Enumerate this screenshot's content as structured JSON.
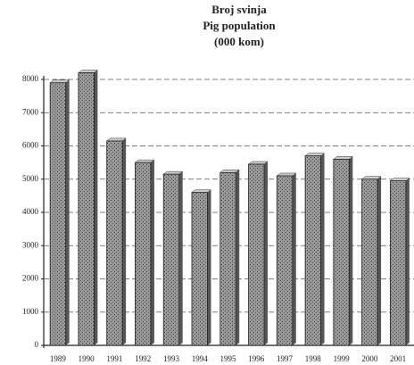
{
  "chart_data": {
    "type": "bar",
    "title": "Broj svinja",
    "subtitle": "Pig population",
    "unit_label": "(000 kom)",
    "categories": [
      "1989",
      "1990",
      "1991",
      "1992",
      "1993",
      "1994",
      "1995",
      "1996",
      "1997",
      "1998",
      "1999",
      "2000",
      "2001"
    ],
    "values": [
      7900,
      8200,
      6150,
      5500,
      5150,
      4600,
      5200,
      5450,
      5100,
      5700,
      5600,
      5000,
      4950
    ],
    "color": "#8a8a8a",
    "ylim": [
      0,
      8000
    ],
    "yticks": [
      0,
      1000,
      2000,
      3000,
      4000,
      5000,
      6000,
      7000,
      8000
    ],
    "grid": true
  }
}
